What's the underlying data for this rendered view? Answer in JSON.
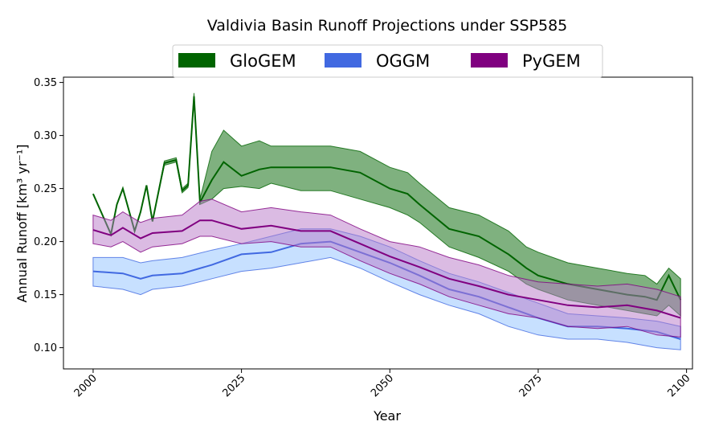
{
  "chart_data": {
    "type": "area",
    "title": "Valdivia Basin Runoff Projections under SSP585",
    "xlabel": "Year",
    "ylabel": "Annual Runoff [km³ yr⁻¹]",
    "xlim": [
      1995,
      2101
    ],
    "ylim": [
      0.08,
      0.355
    ],
    "x_ticks": [
      2000,
      2025,
      2050,
      2075,
      2100
    ],
    "y_ticks": [
      0.1,
      0.15,
      0.2,
      0.25,
      0.3,
      0.35
    ],
    "y_tick_labels": [
      "0.10",
      "0.15",
      "0.20",
      "0.25",
      "0.30",
      "0.35"
    ],
    "legend_position": "top-center",
    "grid": false,
    "series": [
      {
        "name": "GloGEM",
        "color": "#006400",
        "x": [
          2000,
          2003,
          2004,
          2005,
          2007,
          2008,
          2009,
          2010,
          2012,
          2014,
          2015,
          2016,
          2017,
          2018,
          2020,
          2022,
          2025,
          2028,
          2030,
          2035,
          2040,
          2045,
          2050,
          2053,
          2055,
          2060,
          2065,
          2070,
          2073,
          2075,
          2080,
          2085,
          2090,
          2093,
          2095,
          2097,
          2099
        ],
        "mean": [
          0.245,
          0.207,
          0.235,
          0.25,
          0.21,
          0.228,
          0.253,
          0.219,
          0.274,
          0.277,
          0.248,
          0.253,
          0.337,
          0.237,
          0.258,
          0.275,
          0.262,
          0.268,
          0.27,
          0.27,
          0.27,
          0.265,
          0.25,
          0.245,
          0.235,
          0.212,
          0.205,
          0.188,
          0.175,
          0.168,
          0.16,
          0.155,
          0.15,
          0.148,
          0.145,
          0.168,
          0.145
        ],
        "lower": [
          0.245,
          0.207,
          0.235,
          0.25,
          0.21,
          0.228,
          0.253,
          0.219,
          0.272,
          0.275,
          0.246,
          0.251,
          0.334,
          0.235,
          0.24,
          0.25,
          0.252,
          0.25,
          0.255,
          0.248,
          0.248,
          0.24,
          0.232,
          0.225,
          0.218,
          0.195,
          0.185,
          0.172,
          0.16,
          0.155,
          0.145,
          0.14,
          0.135,
          0.132,
          0.13,
          0.14,
          0.13
        ],
        "upper": [
          0.245,
          0.207,
          0.235,
          0.25,
          0.21,
          0.228,
          0.253,
          0.219,
          0.276,
          0.279,
          0.25,
          0.255,
          0.34,
          0.24,
          0.285,
          0.305,
          0.29,
          0.295,
          0.29,
          0.29,
          0.29,
          0.285,
          0.27,
          0.265,
          0.255,
          0.232,
          0.225,
          0.21,
          0.195,
          0.19,
          0.18,
          0.175,
          0.17,
          0.168,
          0.16,
          0.175,
          0.165
        ]
      },
      {
        "name": "OGGM",
        "color": "#4169E1",
        "fill": "#8FC1FF",
        "x": [
          2000,
          2005,
          2008,
          2010,
          2015,
          2020,
          2025,
          2030,
          2035,
          2040,
          2045,
          2050,
          2055,
          2060,
          2065,
          2070,
          2075,
          2080,
          2085,
          2090,
          2095,
          2099
        ],
        "mean": [
          0.172,
          0.17,
          0.165,
          0.168,
          0.17,
          0.178,
          0.188,
          0.19,
          0.198,
          0.2,
          0.19,
          0.18,
          0.168,
          0.155,
          0.148,
          0.138,
          0.128,
          0.12,
          0.12,
          0.118,
          0.115,
          0.108
        ],
        "lower": [
          0.158,
          0.155,
          0.15,
          0.155,
          0.158,
          0.165,
          0.172,
          0.175,
          0.18,
          0.185,
          0.175,
          0.162,
          0.15,
          0.14,
          0.132,
          0.12,
          0.112,
          0.108,
          0.108,
          0.105,
          0.1,
          0.098
        ],
        "upper": [
          0.185,
          0.185,
          0.18,
          0.182,
          0.185,
          0.192,
          0.198,
          0.205,
          0.212,
          0.212,
          0.205,
          0.195,
          0.182,
          0.17,
          0.162,
          0.152,
          0.142,
          0.132,
          0.13,
          0.128,
          0.125,
          0.12
        ]
      },
      {
        "name": "PyGEM",
        "color": "#800080",
        "fill": "#B878C8",
        "x": [
          2000,
          2003,
          2005,
          2008,
          2010,
          2015,
          2018,
          2020,
          2025,
          2030,
          2035,
          2040,
          2045,
          2050,
          2055,
          2060,
          2065,
          2070,
          2075,
          2080,
          2085,
          2090,
          2095,
          2099
        ],
        "mean": [
          0.211,
          0.206,
          0.213,
          0.203,
          0.208,
          0.21,
          0.22,
          0.22,
          0.212,
          0.215,
          0.21,
          0.21,
          0.198,
          0.186,
          0.176,
          0.165,
          0.158,
          0.15,
          0.145,
          0.14,
          0.138,
          0.14,
          0.135,
          0.128
        ],
        "lower": [
          0.198,
          0.195,
          0.2,
          0.19,
          0.195,
          0.198,
          0.205,
          0.205,
          0.198,
          0.2,
          0.195,
          0.195,
          0.182,
          0.17,
          0.16,
          0.148,
          0.14,
          0.132,
          0.128,
          0.12,
          0.118,
          0.12,
          0.112,
          0.11
        ],
        "upper": [
          0.225,
          0.22,
          0.228,
          0.218,
          0.222,
          0.225,
          0.238,
          0.24,
          0.228,
          0.232,
          0.228,
          0.225,
          0.212,
          0.2,
          0.195,
          0.185,
          0.178,
          0.168,
          0.162,
          0.16,
          0.158,
          0.16,
          0.155,
          0.148
        ]
      }
    ]
  }
}
